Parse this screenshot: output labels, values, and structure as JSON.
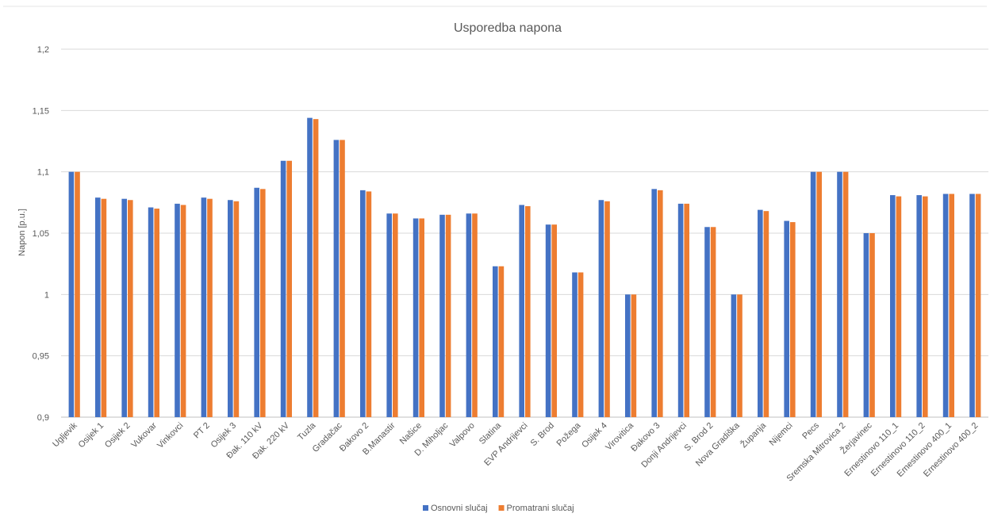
{
  "chart_data": {
    "type": "bar",
    "title": "Usporedba napona",
    "xlabel": "",
    "ylabel": "Napon [p.u.]",
    "ylim": [
      0.9,
      1.2
    ],
    "yticks": [
      0.9,
      0.95,
      1,
      1.05,
      1.1,
      1.15,
      1.2
    ],
    "ytick_labels": [
      "0,9",
      "0,95",
      "1",
      "1,05",
      "1,1",
      "1,15",
      "1,2"
    ],
    "grid": true,
    "legend_position": "bottom",
    "categories": [
      "Ugljevik",
      "Osijek 1",
      "Osijek 2",
      "Vukovar",
      "Vinkovci",
      "PT 2",
      "Osijek 3",
      "Đak. 110 kV",
      "Đak. 220 kV",
      "Tuzla",
      "Gradačac",
      "Đakovo 2",
      "B.Manastir",
      "Našice",
      "D. Miholjac",
      "Valpovo",
      "Slatina",
      "EVP Andrijevci",
      "S. Brod",
      "Požega",
      "Osijek 4",
      "Virovitica",
      "Đakovo 3",
      "Donji Andrijevci",
      "S. Brod 2",
      "Nova Gradiška",
      "Županja",
      "Nijemci",
      "Pecs",
      "Sremska Mitrovica 2",
      "Žerjavinec",
      "Ernestinovo 110_1",
      "Ernestinovo 110_2",
      "Ernestinovo 400_1",
      "Ernestinovo 400_2"
    ],
    "series": [
      {
        "name": "Osnovni slučaj",
        "color": "#4472c4",
        "values": [
          1.1,
          1.079,
          1.078,
          1.071,
          1.074,
          1.079,
          1.077,
          1.087,
          1.109,
          1.144,
          1.126,
          1.085,
          1.066,
          1.062,
          1.065,
          1.066,
          1.023,
          1.073,
          1.057,
          1.018,
          1.077,
          1.0,
          1.086,
          1.074,
          1.055,
          1.0,
          1.069,
          1.06,
          1.1,
          1.1,
          1.05,
          1.081,
          1.081,
          1.082,
          1.082
        ]
      },
      {
        "name": "Promatrani slučaj",
        "color": "#ed7d31",
        "values": [
          1.1,
          1.078,
          1.077,
          1.07,
          1.073,
          1.078,
          1.076,
          1.086,
          1.109,
          1.143,
          1.126,
          1.084,
          1.066,
          1.062,
          1.065,
          1.066,
          1.023,
          1.072,
          1.057,
          1.018,
          1.076,
          1.0,
          1.085,
          1.074,
          1.055,
          1.0,
          1.068,
          1.059,
          1.1,
          1.1,
          1.05,
          1.08,
          1.08,
          1.082,
          1.082
        ]
      }
    ]
  }
}
